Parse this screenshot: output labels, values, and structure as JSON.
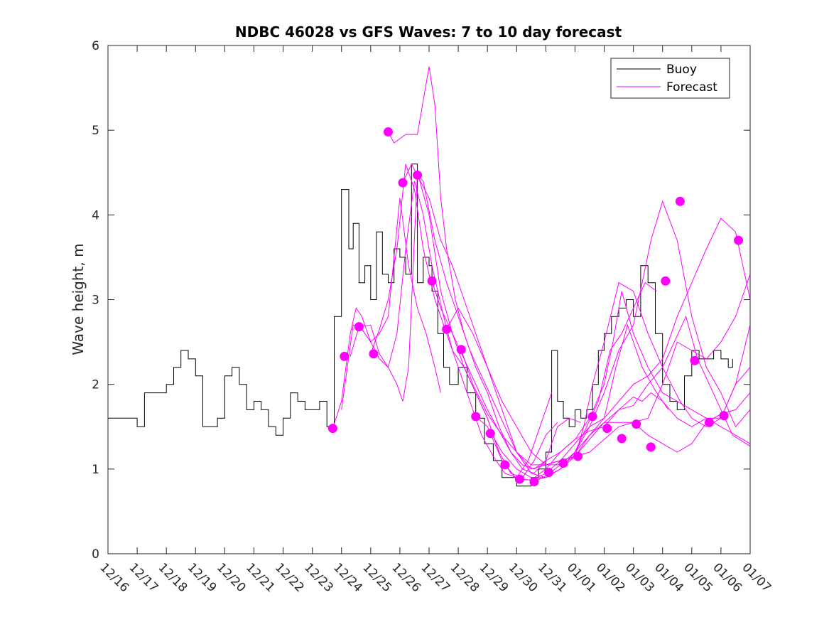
{
  "chart_data": {
    "type": "line",
    "title": "NDBC 46028 vs GFS Waves: 7 to 10 day forecast",
    "xlabel": "",
    "ylabel": "Wave height, m",
    "xlim": [
      0,
      22
    ],
    "ylim": [
      0,
      6
    ],
    "yticks": [
      0,
      1,
      2,
      3,
      4,
      5,
      6
    ],
    "xtick_labels": [
      "12/16",
      "12/17",
      "12/18",
      "12/19",
      "12/20",
      "12/21",
      "12/22",
      "12/23",
      "12/24",
      "12/25",
      "12/26",
      "12/27",
      "12/28",
      "12/29",
      "12/30",
      "12/31",
      "01/01",
      "01/02",
      "01/03",
      "01/04",
      "01/05",
      "01/06",
      "01/07"
    ],
    "legend": {
      "position": "top-right",
      "entries": [
        {
          "label": "Buoy",
          "color": "#000000"
        },
        {
          "label": "Forecast",
          "color": "#ff00ff"
        }
      ]
    },
    "colors": {
      "buoy": "#000000",
      "forecast": "#ff00ff"
    },
    "series": [
      {
        "name": "Buoy",
        "x": [
          0,
          0.25,
          0.5,
          0.75,
          1.0,
          1.25,
          1.5,
          1.75,
          2.0,
          2.25,
          2.5,
          2.75,
          3.0,
          3.25,
          3.5,
          3.75,
          4.0,
          4.25,
          4.5,
          4.75,
          5.0,
          5.25,
          5.5,
          5.75,
          6.0,
          6.25,
          6.5,
          6.75,
          7.0,
          7.25,
          7.5,
          7.75,
          8.0,
          8.25,
          8.4,
          8.6,
          8.8,
          9.0,
          9.2,
          9.4,
          9.6,
          9.8,
          10.0,
          10.2,
          10.4,
          10.6,
          10.8,
          11.0,
          11.1,
          11.3,
          11.5,
          11.7,
          12.0,
          12.3,
          12.6,
          12.9,
          13.2,
          13.5,
          13.8,
          14.0,
          14.25,
          14.5,
          14.75,
          15.0,
          15.2,
          15.4,
          15.6,
          15.8,
          16.0,
          16.2,
          16.4,
          16.6,
          16.8,
          17.0,
          17.25,
          17.5,
          17.75,
          18.0,
          18.25,
          18.5,
          18.75,
          19.0,
          19.25,
          19.5,
          19.75,
          20.0,
          20.25,
          20.5,
          20.75,
          21.0,
          21.25,
          21.4
        ],
        "y": [
          1.6,
          1.6,
          1.6,
          1.6,
          1.5,
          1.9,
          1.9,
          1.9,
          2.0,
          2.2,
          2.4,
          2.3,
          2.1,
          1.5,
          1.5,
          1.6,
          2.1,
          2.2,
          2.0,
          1.7,
          1.8,
          1.7,
          1.5,
          1.4,
          1.6,
          1.9,
          1.8,
          1.7,
          1.7,
          1.8,
          1.5,
          2.8,
          4.3,
          3.6,
          3.9,
          3.2,
          3.4,
          3.0,
          3.8,
          3.3,
          3.2,
          3.6,
          3.5,
          3.3,
          4.6,
          3.2,
          3.5,
          3.4,
          3.1,
          2.6,
          2.2,
          2.0,
          2.2,
          1.9,
          1.6,
          1.3,
          1.1,
          0.9,
          0.9,
          0.8,
          0.8,
          0.9,
          1.0,
          1.2,
          2.4,
          1.8,
          1.6,
          1.5,
          1.7,
          1.6,
          1.7,
          2.0,
          2.4,
          2.6,
          2.8,
          2.9,
          3.0,
          2.8,
          3.4,
          3.2,
          2.6,
          2.0,
          1.8,
          1.7,
          2.1,
          2.4,
          2.3,
          2.3,
          2.4,
          2.3,
          2.2,
          2.3
        ]
      },
      {
        "name": "Forecast 1",
        "x": [
          7.7,
          8.0,
          8.3,
          8.5,
          8.7,
          9.0,
          9.3,
          9.6,
          9.8,
          10.0,
          10.3,
          10.6,
          10.9,
          11.2,
          11.4
        ],
        "y": [
          1.48,
          1.8,
          2.6,
          2.9,
          2.8,
          2.5,
          2.6,
          2.8,
          3.5,
          4.2,
          3.4,
          2.9,
          2.6,
          2.2,
          1.9
        ]
      },
      {
        "name": "Forecast 2",
        "x": [
          8.0,
          8.2,
          8.4,
          8.7,
          9.0,
          9.3,
          9.6,
          9.9,
          10.2,
          10.5,
          10.8,
          11.1,
          11.5,
          11.8,
          12.2,
          12.6,
          13.0,
          13.4
        ],
        "y": [
          1.7,
          2.2,
          2.7,
          2.65,
          2.5,
          2.3,
          2.2,
          2.6,
          3.6,
          4.4,
          4.0,
          3.4,
          2.8,
          2.4,
          2.2,
          1.9,
          1.6,
          1.2
        ]
      },
      {
        "name": "Forecast 3",
        "x": [
          8.3,
          8.6,
          9.0,
          9.3,
          9.6,
          9.9,
          10.1,
          10.3,
          10.6,
          11.0,
          11.4,
          11.8,
          12.2,
          12.6,
          13.0,
          13.4,
          13.8,
          14.2,
          14.6,
          15.0,
          15.4
        ],
        "y": [
          2.33,
          2.68,
          2.7,
          2.36,
          2.2,
          2.0,
          1.8,
          2.2,
          4.5,
          4.0,
          3.1,
          2.6,
          2.2,
          1.9,
          1.6,
          1.2,
          0.95,
          0.9,
          1.1,
          1.4,
          1.55
        ]
      },
      {
        "name": "Forecast 4",
        "x": [
          9.0,
          9.3,
          9.6,
          9.9,
          10.2,
          10.5,
          10.8,
          11.2,
          11.6,
          12.0,
          12.4,
          12.8,
          13.2,
          13.6,
          14.0,
          14.4,
          14.8,
          15.2
        ],
        "y": [
          2.36,
          2.65,
          3.0,
          3.6,
          4.6,
          4.3,
          3.6,
          3.0,
          2.6,
          2.2,
          1.8,
          1.4,
          1.15,
          0.95,
          0.9,
          1.1,
          1.5,
          1.9
        ]
      },
      {
        "name": "Forecast 5",
        "x": [
          9.6,
          9.8,
          10.2,
          10.6,
          11.0,
          11.2,
          11.4,
          11.6,
          11.9,
          12.2,
          12.6,
          13.0,
          13.4,
          13.8,
          14.2,
          14.6,
          15.0,
          15.4,
          15.8,
          16.2
        ],
        "y": [
          4.98,
          4.85,
          4.95,
          4.95,
          5.75,
          5.3,
          4.2,
          3.6,
          3.0,
          2.6,
          2.2,
          1.9,
          1.5,
          1.2,
          1.0,
          0.95,
          1.1,
          1.5,
          1.6,
          1.55
        ]
      },
      {
        "name": "Forecast 6",
        "x": [
          10.1,
          10.4,
          10.7,
          11.0,
          11.4,
          11.8,
          12.2,
          12.6,
          13.0,
          13.5,
          14.0,
          14.5,
          15.0,
          15.5,
          16.0,
          16.4,
          16.8,
          17.2,
          17.6,
          18.0,
          18.4,
          18.8
        ],
        "y": [
          4.38,
          4.6,
          4.4,
          4.2,
          3.7,
          3.4,
          3.0,
          2.6,
          2.2,
          1.7,
          1.2,
          0.95,
          0.9,
          1.0,
          1.2,
          1.5,
          1.8,
          2.4,
          2.6,
          2.9,
          3.2,
          3.1
        ]
      },
      {
        "name": "Forecast 7",
        "x": [
          10.6,
          10.8,
          11.2,
          11.6,
          12.0,
          12.4,
          12.8,
          13.2,
          13.6,
          14.0,
          14.5,
          15.0,
          15.5,
          16.0,
          16.5,
          17.0,
          17.4,
          17.8,
          18.3,
          18.8,
          19.2
        ],
        "y": [
          4.47,
          4.4,
          3.7,
          3.2,
          2.8,
          2.4,
          2.1,
          1.8,
          1.5,
          1.2,
          1.0,
          1.05,
          1.1,
          1.3,
          1.5,
          1.6,
          2.2,
          2.7,
          2.2,
          1.9,
          1.7
        ]
      },
      {
        "name": "Forecast 8",
        "x": [
          11.1,
          11.4,
          11.8,
          12.2,
          12.6,
          13.0,
          13.4,
          13.8,
          14.2,
          14.6,
          15.0,
          15.5,
          16.0,
          16.5,
          17.0,
          17.5,
          18.0,
          18.5,
          19.0,
          19.4,
          19.8,
          20.2,
          20.6,
          21.0,
          21.4,
          22.0
        ],
        "y": [
          3.22,
          2.9,
          2.6,
          2.3,
          2.0,
          1.7,
          1.45,
          1.2,
          1.05,
          1.0,
          1.1,
          1.2,
          1.35,
          1.45,
          1.5,
          1.7,
          1.75,
          2.0,
          2.2,
          2.5,
          2.8,
          2.3,
          2.0,
          1.7,
          1.4,
          1.27
        ]
      },
      {
        "name": "Forecast 9",
        "x": [
          11.6,
          12.0,
          12.5,
          13.0,
          13.5,
          14.0,
          14.5,
          15.0,
          15.5,
          16.0,
          16.5,
          17.0,
          17.5,
          18.0,
          18.3,
          18.6,
          19.0,
          19.5,
          20.0,
          20.5,
          21.0,
          21.5,
          22.0
        ],
        "y": [
          2.65,
          2.9,
          2.6,
          2.2,
          1.8,
          1.5,
          1.2,
          1.05,
          1.05,
          1.15,
          1.35,
          1.55,
          1.7,
          1.85,
          1.8,
          1.9,
          1.8,
          1.6,
          1.5,
          1.6,
          1.6,
          2.0,
          2.2
        ]
      },
      {
        "name": "Forecast 10",
        "x": [
          12.1,
          12.5,
          13.0,
          13.5,
          14.0,
          14.5,
          15.0,
          15.5,
          16.0,
          16.5,
          17.0,
          17.5,
          18.0,
          18.5,
          19.0,
          19.5,
          20.0,
          20.5,
          21.0,
          21.5,
          22.0
        ],
        "y": [
          2.41,
          2.0,
          1.65,
          1.4,
          1.2,
          1.05,
          1.05,
          1.1,
          1.15,
          1.2,
          1.35,
          1.5,
          1.55,
          1.6,
          2.0,
          2.5,
          2.4,
          2.3,
          2.5,
          2.8,
          3.3
        ]
      },
      {
        "name": "Forecast 11",
        "x": [
          12.6,
          13.0,
          13.5,
          14.0,
          14.5,
          15.0,
          15.5,
          16.0,
          16.5,
          17.0,
          17.5,
          18.0,
          18.3,
          18.6,
          19.0,
          19.5,
          20.0,
          20.5,
          21.0,
          21.5,
          22.0
        ],
        "y": [
          1.62,
          1.5,
          1.2,
          1.0,
          0.9,
          0.9,
          1.0,
          1.2,
          1.5,
          1.9,
          2.4,
          2.7,
          3.2,
          3.7,
          4.16,
          3.7,
          2.8,
          2.2,
          1.9,
          1.5,
          1.7
        ]
      },
      {
        "name": "Forecast 12",
        "x": [
          13.1,
          13.5,
          14.0,
          14.5,
          15.0,
          15.5,
          16.0,
          16.3,
          16.6,
          17.0,
          17.5,
          18.0,
          18.5,
          19.0,
          19.3,
          19.6,
          20.0,
          20.5,
          21.0,
          21.5,
          22.0
        ],
        "y": [
          1.42,
          1.1,
          0.88,
          0.87,
          0.9,
          1.0,
          1.15,
          1.5,
          2.0,
          2.5,
          3.2,
          3.1,
          2.6,
          2.2,
          2.0,
          1.8,
          1.6,
          1.5,
          1.6,
          2.0,
          2.7
        ]
      },
      {
        "name": "Forecast 13",
        "x": [
          13.6,
          14.0,
          14.5,
          15.0,
          15.5,
          16.0,
          16.5,
          17.0,
          17.3,
          17.6,
          18.0,
          18.5,
          19.0,
          19.5,
          20.0,
          20.5,
          21.0,
          21.5,
          22.0
        ],
        "y": [
          1.05,
          0.88,
          0.87,
          1.0,
          1.2,
          1.35,
          1.6,
          2.0,
          2.5,
          3.1,
          2.6,
          2.2,
          1.9,
          1.8,
          1.7,
          1.6,
          1.5,
          1.4,
          1.3
        ]
      },
      {
        "name": "Forecast 14",
        "x": [
          14.1,
          14.5,
          15.0,
          15.5,
          16.0,
          16.5,
          17.0,
          17.5,
          18.0,
          18.5,
          19.0,
          19.5,
          20.0,
          20.5,
          21.0,
          21.5,
          22.0
        ],
        "y": [
          0.88,
          0.87,
          0.95,
          1.1,
          1.15,
          1.4,
          1.6,
          1.8,
          2.0,
          2.1,
          2.3,
          2.8,
          3.2,
          3.6,
          3.96,
          3.8,
          3.0
        ]
      },
      {
        "name": "Forecast 15",
        "x": [
          14.6,
          15.0,
          15.5,
          16.0,
          16.5,
          17.0,
          17.5,
          18.0,
          18.5,
          19.0,
          19.5,
          20.0,
          20.5,
          21.0,
          21.5,
          22.0
        ],
        "y": [
          0.85,
          0.92,
          1.05,
          1.2,
          1.4,
          1.55,
          1.55,
          1.55,
          1.4,
          1.3,
          1.2,
          1.3,
          1.55,
          1.65,
          1.7,
          1.9
        ]
      }
    ],
    "forecast_markers": {
      "x": [
        7.7,
        8.1,
        8.6,
        9.1,
        9.6,
        10.1,
        10.6,
        11.1,
        11.6,
        12.1,
        12.6,
        13.1,
        13.6,
        14.1,
        14.6,
        15.1,
        15.6,
        16.1,
        16.6,
        17.1,
        17.6,
        18.1,
        18.6,
        19.1,
        19.6,
        20.1,
        20.6,
        21.1,
        21.6
      ],
      "y": [
        1.48,
        2.33,
        2.68,
        2.36,
        4.98,
        4.38,
        4.47,
        3.22,
        2.65,
        2.41,
        1.62,
        1.42,
        1.05,
        0.88,
        0.85,
        0.96,
        1.07,
        1.15,
        1.62,
        1.48,
        1.36,
        1.53,
        1.26,
        3.22,
        4.16,
        2.28,
        1.55,
        1.63,
        3.7
      ]
    }
  }
}
